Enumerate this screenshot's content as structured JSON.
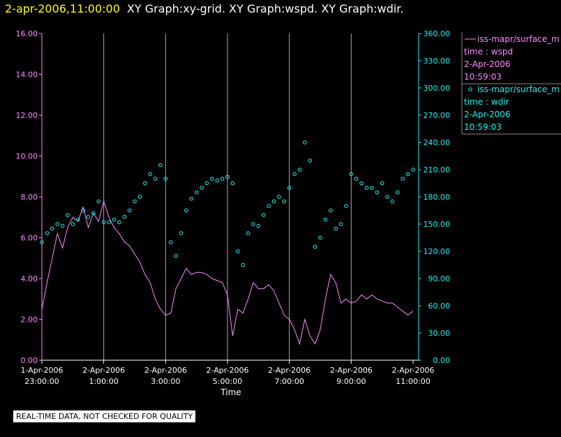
{
  "header": {
    "timestamp": "2-apr-2006,11:00:00",
    "title": "XY Graph:xy-grid.  XY Graph:wspd.  XY Graph:wdir."
  },
  "footer": {
    "quality_note": "REAL-TIME DATA, NOT CHECKED FOR QUALITY"
  },
  "colors": {
    "left_axis": "#ff88ff",
    "right_axis": "#22eeee",
    "grid": "#aaaaaa",
    "background": "#000000",
    "axis_text": "#ffffff"
  },
  "legend": [
    {
      "symbol": "line",
      "name": "iss-mapr/surface_m",
      "param": "time : wspd",
      "date": "2-Apr-2006",
      "time": "10:59:03"
    },
    {
      "symbol": "circle",
      "name": "iss-mapr/surface_m",
      "param": "time : wdir",
      "date": "2-Apr-2006",
      "time": "10:59:03"
    }
  ],
  "chart_data": {
    "type": "line",
    "xlabel": "Time",
    "x_ticks": [
      [
        "1-Apr-2006",
        "23:00:00"
      ],
      [
        "2-Apr-2006",
        "1:00:00"
      ],
      [
        "2-Apr-2006",
        "3:00:00"
      ],
      [
        "2-Apr-2006",
        "5:00:00"
      ],
      [
        "2-Apr-2006",
        "7:00:00"
      ],
      [
        "2-Apr-2006",
        "9:00:00"
      ],
      [
        "2-Apr-2006",
        "11:00:00"
      ]
    ],
    "x_range": [
      "2006-04-01T23:00:00",
      "2006-04-02T11:00:00"
    ],
    "grid": true,
    "y_left": {
      "range": [
        0,
        16
      ],
      "ticks": [
        "0.00",
        "2.00",
        "4.00",
        "6.00",
        "8.00",
        "10.00",
        "12.00",
        "14.00",
        "16.00"
      ]
    },
    "y_right": {
      "range": [
        0,
        360
      ],
      "ticks": [
        "0.00",
        "30.00",
        "60.00",
        "90.00",
        "120.00",
        "150.00",
        "180.00",
        "210.00",
        "240.00",
        "270.00",
        "300.00",
        "330.00",
        "360.00"
      ]
    },
    "series": [
      {
        "name": "iss-mapr/surface_m",
        "param": "time : wspd",
        "style": "line",
        "axis": "left",
        "x": [
          "2006-04-01T23:00:00",
          "2006-04-01T23:10:00",
          "2006-04-01T23:20:00",
          "2006-04-01T23:30:00",
          "2006-04-01T23:40:00",
          "2006-04-01T23:50:00",
          "2006-04-02T00:00:00",
          "2006-04-02T00:10:00",
          "2006-04-02T00:20:00",
          "2006-04-02T00:30:00",
          "2006-04-02T00:40:00",
          "2006-04-02T00:50:00",
          "2006-04-02T01:00:00",
          "2006-04-02T01:10:00",
          "2006-04-02T01:20:00",
          "2006-04-02T01:30:00",
          "2006-04-02T01:40:00",
          "2006-04-02T01:50:00",
          "2006-04-02T02:00:00",
          "2006-04-02T02:10:00",
          "2006-04-02T02:20:00",
          "2006-04-02T02:30:00",
          "2006-04-02T02:40:00",
          "2006-04-02T02:50:00",
          "2006-04-02T03:00:00",
          "2006-04-02T03:10:00",
          "2006-04-02T03:20:00",
          "2006-04-02T03:30:00",
          "2006-04-02T03:40:00",
          "2006-04-02T03:50:00",
          "2006-04-02T04:00:00",
          "2006-04-02T04:10:00",
          "2006-04-02T04:20:00",
          "2006-04-02T04:30:00",
          "2006-04-02T04:40:00",
          "2006-04-02T04:50:00",
          "2006-04-02T05:00:00",
          "2006-04-02T05:10:00",
          "2006-04-02T05:20:00",
          "2006-04-02T05:30:00",
          "2006-04-02T05:40:00",
          "2006-04-02T05:50:00",
          "2006-04-02T06:00:00",
          "2006-04-02T06:10:00",
          "2006-04-02T06:20:00",
          "2006-04-02T06:30:00",
          "2006-04-02T06:40:00",
          "2006-04-02T06:50:00",
          "2006-04-02T07:00:00",
          "2006-04-02T07:10:00",
          "2006-04-02T07:20:00",
          "2006-04-02T07:30:00",
          "2006-04-02T07:40:00",
          "2006-04-02T07:50:00",
          "2006-04-02T08:00:00",
          "2006-04-02T08:10:00",
          "2006-04-02T08:20:00",
          "2006-04-02T08:30:00",
          "2006-04-02T08:40:00",
          "2006-04-02T08:50:00",
          "2006-04-02T09:00:00",
          "2006-04-02T09:10:00",
          "2006-04-02T09:20:00",
          "2006-04-02T09:30:00",
          "2006-04-02T09:40:00",
          "2006-04-02T09:50:00",
          "2006-04-02T10:00:00",
          "2006-04-02T10:10:00",
          "2006-04-02T10:20:00",
          "2006-04-02T10:30:00",
          "2006-04-02T10:40:00",
          "2006-04-02T10:50:00",
          "2006-04-02T11:00:00"
        ],
        "values": [
          2.5,
          3.8,
          5.0,
          6.2,
          5.5,
          6.5,
          7.0,
          6.8,
          7.5,
          6.5,
          7.2,
          6.8,
          7.8,
          7.0,
          6.5,
          6.2,
          5.8,
          5.6,
          5.2,
          4.8,
          4.2,
          3.8,
          3.0,
          2.5,
          2.2,
          2.3,
          3.5,
          4.0,
          4.5,
          4.2,
          4.3,
          4.3,
          4.2,
          4.0,
          3.9,
          3.8,
          3.2,
          1.2,
          2.5,
          2.3,
          3.0,
          3.8,
          3.5,
          3.5,
          3.7,
          3.4,
          2.8,
          2.2,
          2.0,
          1.5,
          0.8,
          2.0,
          1.2,
          0.8,
          1.5,
          3.0,
          4.2,
          3.8,
          2.8,
          3.0,
          2.8,
          2.9,
          3.2,
          3.0,
          3.2,
          3.0,
          2.9,
          2.8,
          2.8,
          2.6,
          2.4,
          2.2,
          2.4
        ]
      },
      {
        "name": "iss-mapr/surface_m",
        "param": "time : wdir",
        "style": "circles",
        "axis": "right",
        "x": [
          "2006-04-01T23:00:00",
          "2006-04-01T23:10:00",
          "2006-04-01T23:20:00",
          "2006-04-01T23:30:00",
          "2006-04-01T23:40:00",
          "2006-04-01T23:50:00",
          "2006-04-02T00:00:00",
          "2006-04-02T00:10:00",
          "2006-04-02T00:20:00",
          "2006-04-02T00:30:00",
          "2006-04-02T00:40:00",
          "2006-04-02T00:50:00",
          "2006-04-02T01:00:00",
          "2006-04-02T01:10:00",
          "2006-04-02T01:20:00",
          "2006-04-02T01:30:00",
          "2006-04-02T01:40:00",
          "2006-04-02T01:50:00",
          "2006-04-02T02:00:00",
          "2006-04-02T02:10:00",
          "2006-04-02T02:20:00",
          "2006-04-02T02:30:00",
          "2006-04-02T02:40:00",
          "2006-04-02T02:50:00",
          "2006-04-02T03:00:00",
          "2006-04-02T03:10:00",
          "2006-04-02T03:20:00",
          "2006-04-02T03:30:00",
          "2006-04-02T03:40:00",
          "2006-04-02T03:50:00",
          "2006-04-02T04:00:00",
          "2006-04-02T04:10:00",
          "2006-04-02T04:20:00",
          "2006-04-02T04:30:00",
          "2006-04-02T04:40:00",
          "2006-04-02T04:50:00",
          "2006-04-02T05:00:00",
          "2006-04-02T05:10:00",
          "2006-04-02T05:20:00",
          "2006-04-02T05:30:00",
          "2006-04-02T05:40:00",
          "2006-04-02T05:50:00",
          "2006-04-02T06:00:00",
          "2006-04-02T06:10:00",
          "2006-04-02T06:20:00",
          "2006-04-02T06:30:00",
          "2006-04-02T06:40:00",
          "2006-04-02T06:50:00",
          "2006-04-02T07:00:00",
          "2006-04-02T07:10:00",
          "2006-04-02T07:20:00",
          "2006-04-02T07:30:00",
          "2006-04-02T07:40:00",
          "2006-04-02T07:50:00",
          "2006-04-02T08:00:00",
          "2006-04-02T08:10:00",
          "2006-04-02T08:20:00",
          "2006-04-02T08:30:00",
          "2006-04-02T08:40:00",
          "2006-04-02T08:50:00",
          "2006-04-02T09:00:00",
          "2006-04-02T09:10:00",
          "2006-04-02T09:20:00",
          "2006-04-02T09:30:00",
          "2006-04-02T09:40:00",
          "2006-04-02T09:50:00",
          "2006-04-02T10:00:00",
          "2006-04-02T10:10:00",
          "2006-04-02T10:20:00",
          "2006-04-02T10:30:00",
          "2006-04-02T10:40:00",
          "2006-04-02T10:50:00",
          "2006-04-02T11:00:00"
        ],
        "values": [
          130,
          140,
          145,
          150,
          148,
          160,
          150,
          155,
          165,
          158,
          162,
          175,
          152,
          152,
          155,
          152,
          158,
          165,
          175,
          180,
          195,
          205,
          200,
          215,
          200,
          130,
          115,
          140,
          165,
          178,
          185,
          190,
          195,
          200,
          198,
          200,
          202,
          195,
          120,
          105,
          140,
          150,
          148,
          160,
          170,
          175,
          180,
          175,
          190,
          205,
          210,
          240,
          220,
          125,
          135,
          155,
          165,
          145,
          150,
          170,
          205,
          200,
          195,
          190,
          190,
          185,
          195,
          180,
          175,
          185,
          200,
          205,
          210
        ]
      }
    ]
  }
}
